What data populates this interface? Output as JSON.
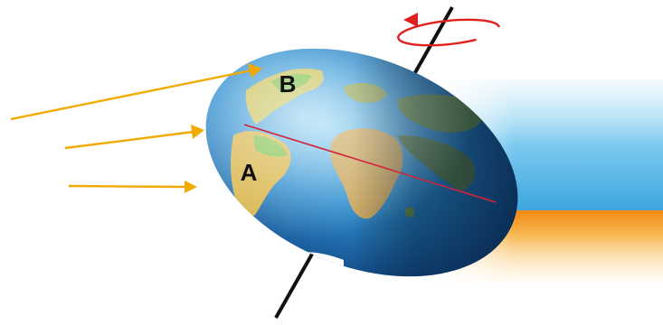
{
  "labels": {
    "point_a": "A",
    "point_b": "B"
  },
  "colors": {
    "sun_rays": "#f2a900",
    "axis": "#111111",
    "rotation_arrow": "#e0201e",
    "equator": "#d2233a",
    "ocean": "#2f8fd0",
    "land": "#d9b54a",
    "night_band": "#5ab8e8",
    "day_band": "#f39a1e"
  },
  "icons": {
    "rotation": "rotation-arrow-icon",
    "sunlight": "sun-ray-arrow-icon"
  }
}
